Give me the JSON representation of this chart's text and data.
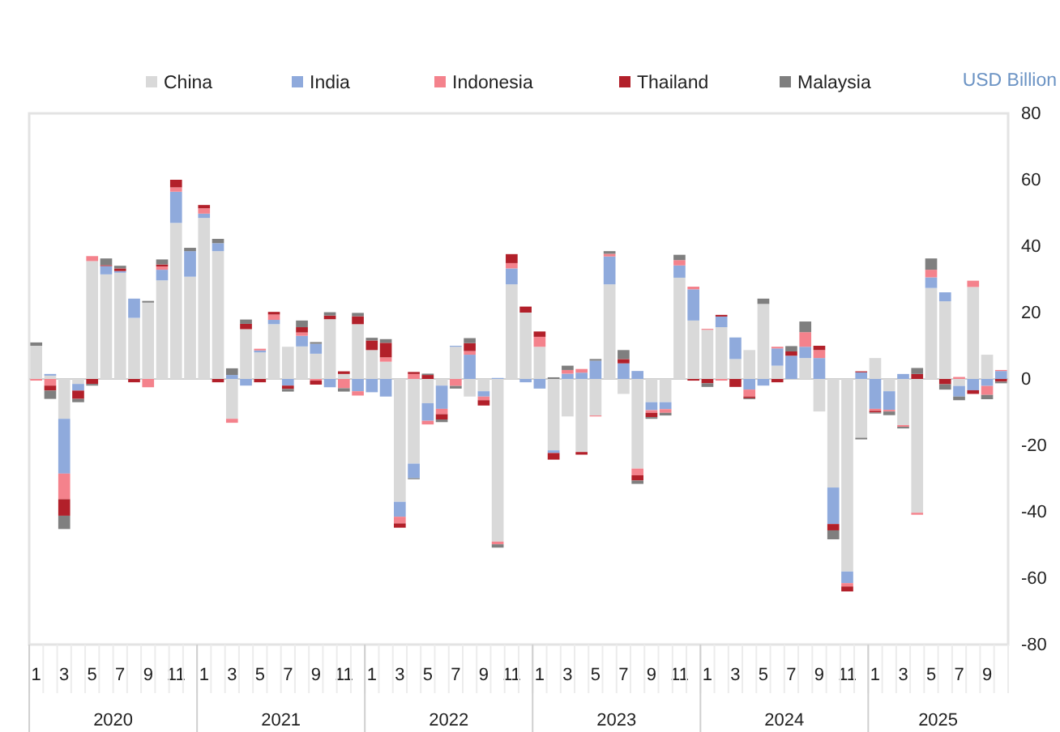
{
  "chart_data": {
    "type": "bar",
    "stacked": true,
    "ylabel": "USD Billion",
    "legend": "top",
    "categories": [
      "1",
      null,
      "3",
      null,
      "5",
      null,
      "7",
      null,
      "9",
      null,
      "11",
      null,
      "1",
      null,
      "3",
      null,
      "5",
      null,
      "7",
      null,
      "9",
      null,
      "11",
      null,
      "1",
      null,
      "3",
      null,
      "5",
      null,
      "7",
      null,
      "9",
      null,
      "11",
      null,
      "1",
      null,
      "3",
      null,
      "5",
      null,
      "7",
      null,
      "9",
      null,
      "11",
      null,
      "1",
      null,
      "3",
      null,
      "5",
      null,
      "7",
      null,
      "9",
      null,
      "11",
      null,
      "1",
      null,
      "3",
      null,
      "5",
      null,
      "7",
      null,
      "9",
      null
    ],
    "annotations": [
      "2020",
      "2021",
      "2022",
      "2023",
      "2024",
      "2025"
    ],
    "ylim": [
      -80,
      80
    ],
    "yticks": [
      -80,
      -60,
      -40,
      -20,
      0,
      20,
      40,
      60,
      80
    ],
    "series": [
      {
        "name": "China",
        "color": "#d9d9d9",
        "values": [
          10,
          1,
          -12,
          -1.5,
          35.5,
          31.5,
          32,
          18.4,
          23,
          29.7,
          47,
          30.8,
          48.5,
          38.5,
          -12,
          15,
          8,
          16.5,
          9.7,
          9.8,
          7.6,
          18,
          1.5,
          16.5,
          8.7,
          5.2,
          -37,
          -25.5,
          -7.3,
          -2,
          9.7,
          -5.3,
          -3.7,
          -49,
          28.5,
          20,
          9.7,
          -21.5,
          -11.3,
          -22,
          -11,
          28.5,
          -4.5,
          -27,
          -7,
          -7,
          30.5,
          17.6,
          14.8,
          15.6,
          6,
          8.7,
          22.6,
          4,
          0,
          6.3,
          -9.8,
          -32.7,
          -58,
          -17.7,
          6.3,
          -3.7,
          -13.9,
          -40.3,
          27.4,
          23.4,
          -2.1,
          27.7,
          7.3,
          0
        ]
      },
      {
        "name": "India",
        "color": "#8faadc",
        "values": [
          0,
          0.5,
          -16.5,
          -2,
          0,
          2.5,
          0.5,
          5.8,
          0,
          3.2,
          9.4,
          7.7,
          1.3,
          2.4,
          1.2,
          -2,
          0.6,
          1.3,
          -2,
          3.2,
          3,
          -2.5,
          0,
          -3.7,
          -4,
          -5.3,
          -4.5,
          -4.4,
          -5.3,
          -7,
          0.3,
          7.3,
          -1.6,
          0.3,
          4.8,
          -1,
          -2.9,
          -0.8,
          1.6,
          1.9,
          5.5,
          8.4,
          4.7,
          2.4,
          -2.4,
          -2.1,
          3.7,
          9.4,
          0,
          3.2,
          6.5,
          -3.2,
          -2,
          5.2,
          7,
          3.4,
          6.3,
          -11,
          -3.5,
          2,
          -9,
          -5.6,
          1.5,
          0,
          3.2,
          2.7,
          -3.2,
          -3.4,
          -2.1,
          2.4
        ]
      },
      {
        "name": "Indonesia",
        "color": "#f4828c",
        "values": [
          -0.5,
          -2,
          -7.7,
          0,
          1.5,
          0,
          0,
          0,
          -2.5,
          1,
          1.3,
          0,
          1.6,
          0,
          -1.2,
          0,
          0.5,
          1.6,
          0,
          1,
          -0.5,
          0,
          -2.8,
          -1.3,
          0,
          1.3,
          -2,
          1.5,
          -1.1,
          -1.6,
          -2.1,
          1.1,
          -1.1,
          -0.8,
          1.6,
          0,
          3,
          0,
          1.1,
          1.1,
          -0.3,
          0.8,
          0,
          -2,
          -0.8,
          -1.1,
          1.6,
          0.8,
          0.3,
          -0.5,
          0,
          -2.1,
          0,
          0.5,
          0,
          4.4,
          2.4,
          0,
          -1,
          0,
          -0.6,
          -0.5,
          -0.5,
          -0.6,
          2.3,
          0,
          0.6,
          1.9,
          -2.7,
          0.3
        ]
      },
      {
        "name": "Thailand",
        "color": "#b2202a",
        "values": [
          0,
          -1.5,
          -5,
          -2.5,
          -1.5,
          0.3,
          0.8,
          -1,
          0,
          0.6,
          2.3,
          0,
          1,
          -1,
          0,
          1.6,
          -1,
          0.8,
          -1,
          1.6,
          -1.2,
          1.1,
          0.8,
          2.4,
          2.9,
          4.4,
          -1.3,
          0.6,
          1.2,
          -1.6,
          0,
          2.4,
          -1.6,
          0,
          2.7,
          1.8,
          1.6,
          -2,
          0,
          -0.8,
          0,
          0,
          1.3,
          -1.6,
          -1.3,
          0,
          0,
          -0.5,
          -1.3,
          0.5,
          -2.4,
          -0.5,
          0,
          -1,
          1.3,
          0,
          1.3,
          -1.9,
          -1.5,
          0.3,
          -0.5,
          0,
          0,
          1.5,
          0,
          -1.6,
          0,
          -1.1,
          0,
          -0.8
        ]
      },
      {
        "name": "Malaysia",
        "color": "#7f7f7f",
        "values": [
          1,
          -2.5,
          -4,
          -1,
          -0.5,
          2,
          0.8,
          0,
          0.5,
          1.5,
          0,
          1,
          0,
          1.3,
          2,
          1.3,
          0,
          0,
          -0.8,
          2,
          0.5,
          1,
          -1,
          1,
          0.8,
          1.1,
          0,
          -0.3,
          0.4,
          -0.8,
          -0.8,
          1.5,
          0,
          -1,
          0,
          0,
          0,
          0.5,
          1.3,
          0,
          0.5,
          0.8,
          2.7,
          -1,
          -0.5,
          -0.8,
          1.6,
          0,
          -1.1,
          0,
          0,
          -0.3,
          1.6,
          0,
          1.6,
          3.2,
          0,
          -2.7,
          0,
          -0.5,
          -0.3,
          -1.1,
          -0.5,
          1.8,
          3.4,
          -1.6,
          -1.1,
          0,
          -1.3,
          -0.5
        ]
      }
    ]
  }
}
